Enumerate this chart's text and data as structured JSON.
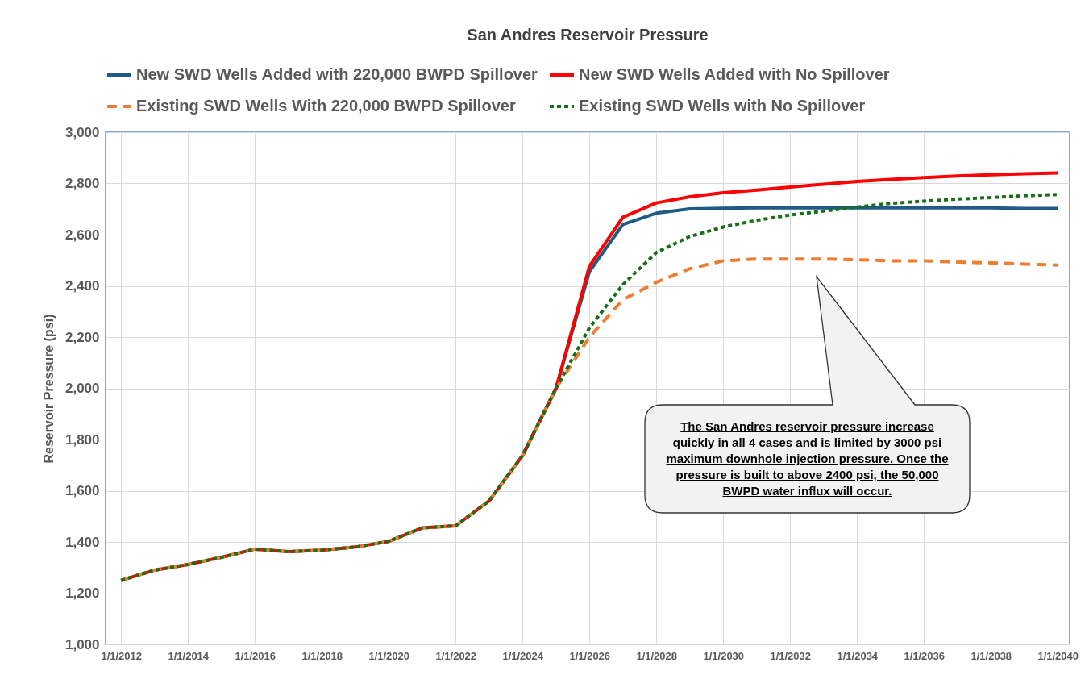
{
  "chart_data": {
    "type": "line",
    "title": "San Andres Reservoir Pressure",
    "ylabel": "Reservoir Pressure (psi)",
    "x": [
      "2012",
      "2013",
      "2014",
      "2015",
      "2016",
      "2017",
      "2018",
      "2019",
      "2020",
      "2021",
      "2022",
      "2023",
      "2024",
      "2025",
      "2026",
      "2027",
      "2028",
      "2029",
      "2030",
      "2031",
      "2032",
      "2033",
      "2034",
      "2035",
      "2036",
      "2037",
      "2038",
      "2039",
      "2040"
    ],
    "series": [
      {
        "name": "New SWD Wells Added with 220,000 BWPD Spillover",
        "color": "#1f5b84",
        "line_style": "solid",
        "values": [
          null,
          null,
          null,
          null,
          null,
          null,
          null,
          null,
          null,
          null,
          null,
          null,
          1737,
          2000,
          2456,
          2640,
          2684,
          2701,
          2703,
          2705,
          2705,
          2705,
          2705,
          2705,
          2705,
          2705,
          2705,
          2702,
          2702
        ]
      },
      {
        "name": "New SWD Wells Added with No Spillover",
        "color": "#ff0000",
        "line_style": "solid",
        "values": [
          1250,
          1290,
          1312,
          1340,
          1372,
          1362,
          1368,
          1380,
          1402,
          1455,
          1463,
          1560,
          1737,
          2000,
          2477,
          2668,
          2724,
          2748,
          2764,
          2774,
          2786,
          2797,
          2808,
          2816,
          2823,
          2829,
          2834,
          2838,
          2841
        ]
      },
      {
        "name": "Existing SWD Wells With 220,000 BWPD Spillover",
        "color": "#ed7d31",
        "line_style": "dashed",
        "values": [
          1250,
          1290,
          1312,
          1340,
          1372,
          1362,
          1368,
          1380,
          1402,
          1455,
          1463,
          1560,
          1737,
          2000,
          2200,
          2346,
          2414,
          2467,
          2498,
          2505,
          2505,
          2505,
          2502,
          2498,
          2498,
          2493,
          2490,
          2485,
          2481
        ]
      },
      {
        "name": "Existing SWD Wells with No Spillover",
        "color": "#1a6e1a",
        "line_style": "dotted",
        "values": [
          1250,
          1290,
          1312,
          1340,
          1372,
          1362,
          1368,
          1380,
          1402,
          1455,
          1463,
          1560,
          1737,
          2000,
          2236,
          2405,
          2530,
          2593,
          2630,
          2656,
          2677,
          2692,
          2708,
          2722,
          2731,
          2739,
          2745,
          2752,
          2757
        ]
      }
    ],
    "xlim": [
      "2011-07-16",
      "2040-05-10"
    ],
    "xticks": [
      {
        "value": "2012-01-01",
        "label": "1/1/2012"
      },
      {
        "value": "2014-01-01",
        "label": "1/1/2014"
      },
      {
        "value": "2016-01-01",
        "label": "1/1/2016"
      },
      {
        "value": "2018-01-01",
        "label": "1/1/2018"
      },
      {
        "value": "2020-01-01",
        "label": "1/1/2020"
      },
      {
        "value": "2022-01-01",
        "label": "1/1/2022"
      },
      {
        "value": "2024-01-01",
        "label": "1/1/2024"
      },
      {
        "value": "2026-01-01",
        "label": "1/1/2026"
      },
      {
        "value": "2028-01-01",
        "label": "1/1/2028"
      },
      {
        "value": "2030-01-01",
        "label": "1/1/2030"
      },
      {
        "value": "2032-01-01",
        "label": "1/1/2032"
      },
      {
        "value": "2034-01-01",
        "label": "1/1/2034"
      },
      {
        "value": "2036-01-01",
        "label": "1/1/2036"
      },
      {
        "value": "2038-01-01",
        "label": "1/1/2038"
      },
      {
        "value": "2040-01-01",
        "label": "1/1/2040"
      }
    ],
    "ylim": [
      1000,
      3000
    ],
    "yticks": [
      {
        "value": 1000,
        "label": "1,000"
      },
      {
        "value": 1200,
        "label": "1,200"
      },
      {
        "value": 1400,
        "label": "1,400"
      },
      {
        "value": 1600,
        "label": "1,600"
      },
      {
        "value": 1800,
        "label": "1,800"
      },
      {
        "value": 2000,
        "label": "2,000"
      },
      {
        "value": 2200,
        "label": "2,200"
      },
      {
        "value": 2400,
        "label": "2,400"
      },
      {
        "value": 2600,
        "label": "2,600"
      },
      {
        "value": 2800,
        "label": "2,800"
      },
      {
        "value": 3000,
        "label": "3,000"
      }
    ],
    "grid": true,
    "legend": "top",
    "marker": "none",
    "annotations": [
      "The San Andres reservoir pressure increase quickly in all 4 cases and is limited by 3000 psi maximum downhole injection pressure.  Once the pressure is built to above 2400 psi, the 50,000 BWPD water influx will occur."
    ]
  }
}
